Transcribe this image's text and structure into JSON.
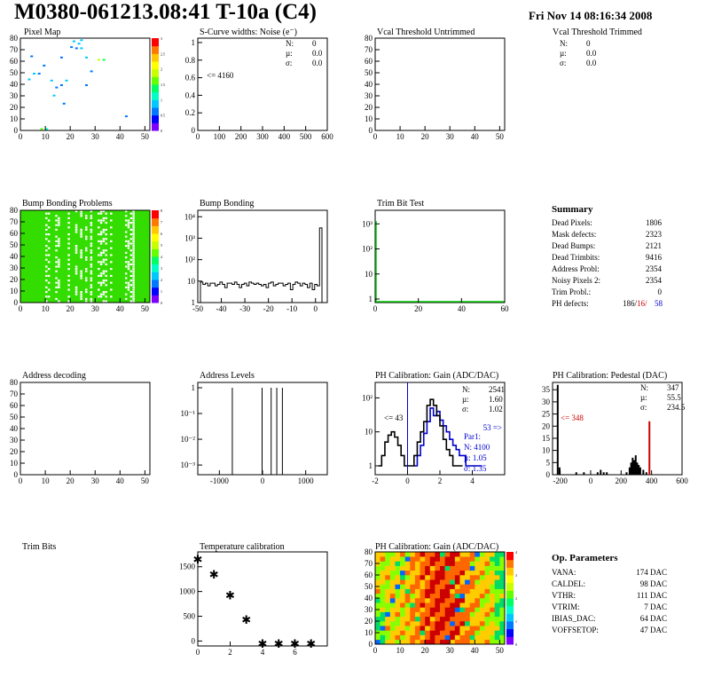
{
  "page": {
    "title": "M0380-061213.08:41 T-10a (C4)",
    "date": "Fri Nov 14 08:16:34 2008"
  },
  "colors": {
    "frame": "#000000",
    "hist_line": "#000000",
    "blue": "#0000cc",
    "red": "#cc0000",
    "green": "#00cc00"
  },
  "palette": [
    "#7d00ff",
    "#0000ff",
    "#0078ff",
    "#00c8ff",
    "#00ffc8",
    "#00ff64",
    "#64ff00",
    "#c8ff00",
    "#ffff00",
    "#ffc800",
    "#ff7800",
    "#ff0000"
  ],
  "summary": {
    "title": "Summary",
    "rows": [
      {
        "label": "Dead Pixels:",
        "value": "1806"
      },
      {
        "label": "Mask defects:",
        "value": "2323"
      },
      {
        "label": "Dead Bumps:",
        "value": "2121"
      },
      {
        "label": "Dead Trimbits:",
        "value": "9416"
      },
      {
        "label": "Address Probl:",
        "value": "2354"
      },
      {
        "label": "Noisy Pixels 2:",
        "value": "2354"
      },
      {
        "label": "Trim Probl.:",
        "value": "0"
      }
    ],
    "ph_label": "PH defects:",
    "ph_v1": "186/",
    "ph_v2": "16/",
    "ph_v3": "58"
  },
  "op_params": {
    "title": "Op. Parameters",
    "rows": [
      {
        "label": "VANA:",
        "value": "174 DAC"
      },
      {
        "label": "CALDEL:",
        "value": "98 DAC"
      },
      {
        "label": "VTHR:",
        "value": "111 DAC"
      },
      {
        "label": "VTRIM:",
        "value": "7 DAC"
      },
      {
        "label": "IBIAS_DAC:",
        "value": "64 DAC"
      },
      {
        "label": "VOFFSETOP:",
        "value": "47 DAC"
      }
    ]
  },
  "chart_data": [
    {
      "id": "pixel_map",
      "type": "heatmap",
      "title": "Pixel Map",
      "xlim": [
        0,
        52
      ],
      "ylim": [
        0,
        80
      ],
      "x_ticks": [
        "0",
        "10",
        "20",
        "30",
        "40",
        "50"
      ],
      "y_ticks": [
        "0",
        "10",
        "20",
        "30",
        "40",
        "50",
        "60",
        "70",
        "80"
      ],
      "z_ticks": [
        "0",
        "0.5",
        "1",
        "1.5",
        "2",
        "2.5",
        "3"
      ],
      "points": [
        [
          4,
          65,
          2
        ],
        [
          9,
          57,
          2
        ],
        [
          12,
          44,
          3
        ],
        [
          18,
          44,
          3
        ],
        [
          21,
          78,
          3
        ],
        [
          22,
          72,
          2
        ],
        [
          23,
          76,
          3
        ],
        [
          24,
          79,
          3
        ],
        [
          26,
          64,
          3
        ],
        [
          31,
          62,
          7
        ],
        [
          14,
          38,
          2
        ],
        [
          16,
          40,
          2
        ],
        [
          20,
          73,
          2
        ],
        [
          42,
          13,
          2
        ],
        [
          8,
          2,
          6
        ],
        [
          10,
          2,
          4
        ],
        [
          5,
          50,
          3
        ],
        [
          7,
          50,
          2
        ],
        [
          13,
          31,
          3
        ],
        [
          17,
          24,
          2
        ],
        [
          28,
          52,
          2
        ],
        [
          26,
          40,
          2
        ],
        [
          24,
          72,
          3
        ],
        [
          3,
          45,
          3
        ],
        [
          16,
          64,
          2
        ],
        [
          33,
          62,
          5
        ]
      ]
    },
    {
      "id": "scurve",
      "type": "bar",
      "title": "S-Curve widths: Noise (e⁻)",
      "xlim": [
        0,
        600
      ],
      "ylim": [
        0,
        1.05
      ],
      "x_ticks": [
        "0",
        "100",
        "200",
        "300",
        "400",
        "500",
        "600"
      ],
      "y_ticks": [
        "0",
        "0.2",
        "0.4",
        "0.6",
        "0.8",
        "1"
      ],
      "stats": {
        "N": "0",
        "mu": "0.0",
        "sigma": "0.0"
      },
      "annotation": "<= 4160"
    },
    {
      "id": "vcal_untrimmed",
      "type": "bar",
      "title": "Vcal Threshold Untrimmed",
      "xlim": [
        0,
        52
      ],
      "ylim": [
        0,
        80
      ],
      "x_ticks": [
        "0",
        "10",
        "20",
        "30",
        "40",
        "50"
      ],
      "y_ticks": [
        "0",
        "10",
        "20",
        "30",
        "40",
        "50",
        "60",
        "70",
        "80"
      ]
    },
    {
      "id": "vcal_trimmed",
      "type": "bar",
      "title": "Vcal Threshold Trimmed",
      "stats": {
        "N": "0",
        "mu": "0.0",
        "sigma": "0.0"
      }
    },
    {
      "id": "bump_map",
      "type": "heatmap",
      "title": "Bump Bonding Problems",
      "xlim": [
        0,
        52
      ],
      "ylim": [
        0,
        80
      ],
      "x_ticks": [
        "0",
        "10",
        "20",
        "30",
        "40",
        "50"
      ],
      "y_ticks": [
        "0",
        "10",
        "20",
        "30",
        "40",
        "50",
        "60",
        "70",
        "80"
      ],
      "z_ticks": [
        "0",
        "1",
        "2",
        "3",
        "4",
        "5",
        "6",
        "7",
        "8"
      ],
      "white_columns": [
        10,
        11,
        14,
        15,
        19,
        20,
        22,
        24,
        26,
        28,
        31,
        32,
        33,
        34,
        36,
        42,
        43,
        44,
        45
      ]
    },
    {
      "id": "bump_bonding",
      "type": "bar",
      "title": "Bump Bonding",
      "xlim": [
        -50,
        5
      ],
      "log_y": true,
      "x_ticks": [
        "-50",
        "-40",
        "-30",
        "-20",
        "-10",
        "0"
      ],
      "y_ticks": [
        "1",
        "10",
        "10²",
        "10³",
        "10⁴"
      ],
      "values": [
        9,
        7,
        8,
        6,
        8,
        8,
        6,
        7,
        9,
        7,
        5,
        8,
        8,
        7,
        9,
        7,
        5,
        7,
        8,
        6,
        9,
        8,
        7,
        8,
        7,
        6,
        7,
        5,
        8,
        9,
        6,
        7,
        8,
        8,
        6,
        7,
        8,
        4,
        7,
        9,
        8,
        6,
        8,
        7,
        5,
        8,
        4,
        7,
        6,
        3000
      ]
    },
    {
      "id": "trim_bit_test",
      "type": "bar",
      "title": "Trim Bit Test",
      "xlim": [
        0,
        60
      ],
      "log_y": true,
      "x_ticks": [
        "0",
        "20",
        "40",
        "60"
      ],
      "y_ticks": [
        "1",
        "10",
        "10²",
        "10³"
      ]
    },
    {
      "id": "address_decoding",
      "type": "heatmap",
      "title": "Address decoding",
      "xlim": [
        0,
        52
      ],
      "ylim": [
        0,
        80
      ],
      "x_ticks": [
        "0",
        "10",
        "20",
        "30",
        "40",
        "50"
      ],
      "y_ticks": [
        "0",
        "10",
        "20",
        "30",
        "40",
        "50",
        "60",
        "70",
        "80"
      ]
    },
    {
      "id": "address_levels",
      "type": "bar",
      "title": "Address Levels",
      "xlim": [
        -1500,
        1500
      ],
      "log_y": true,
      "x_ticks": [
        "-1000",
        "0",
        "1000"
      ],
      "y_ticks": [
        "10⁻³",
        "10⁻²",
        "10⁻¹",
        "1"
      ],
      "spikes": [
        -700,
        -10,
        200,
        330,
        460
      ]
    },
    {
      "id": "ph_gain",
      "type": "line",
      "title": "PH Calibration: Gain (ADC/DAC)",
      "xlim": [
        -2,
        6
      ],
      "log_y": true,
      "x_ticks": [
        "-2",
        "0",
        "2",
        "4"
      ],
      "y_ticks": [
        "1",
        "10",
        "10²"
      ],
      "stats": {
        "N": "2541",
        "mu": "1.60",
        "sigma": "1.02"
      },
      "fit": {
        "label": "Par1:",
        "N": "N: 4100",
        "mu": "µ: 1.05",
        "sigma": "σ: 1.35"
      },
      "left_annot": "<= 43",
      "right_annot": "53 =>",
      "black_x": [
        -1.7,
        -1.5,
        -1.3,
        -1.1,
        -0.9,
        -0.7,
        -0.5,
        -0.3,
        -0.1,
        0.1,
        0.3,
        0.5,
        0.7,
        0.9,
        1.1,
        1.3,
        1.5,
        1.7,
        1.9,
        2.1,
        2.3,
        2.5,
        2.7,
        2.9,
        3.1,
        3.3
      ],
      "black_y": [
        1,
        2,
        5,
        8,
        10,
        7,
        4,
        2,
        1,
        1,
        1,
        2,
        5,
        10,
        20,
        60,
        90,
        60,
        30,
        15,
        6,
        3,
        2,
        1,
        1,
        1
      ],
      "blue_x": [
        0.5,
        0.7,
        0.9,
        1.1,
        1.3,
        1.5,
        1.7,
        1.9,
        2.1,
        2.3,
        2.5,
        2.7,
        2.9,
        3.1,
        3.3,
        3.5,
        3.7,
        3.9,
        4.1,
        4.3,
        4.5
      ],
      "blue_y": [
        1,
        2,
        4,
        9,
        20,
        50,
        30,
        40,
        22,
        15,
        10,
        6,
        4,
        3,
        2,
        2,
        1,
        1,
        1,
        1,
        1
      ]
    },
    {
      "id": "ph_pedestal",
      "type": "bar",
      "title": "PH Calibration: Pedestal (DAC)",
      "xlim": [
        -250,
        600
      ],
      "ylim": [
        0,
        38
      ],
      "x_ticks": [
        "-200",
        "0",
        "200",
        "400",
        "600"
      ],
      "y_ticks": [
        "0",
        "5",
        "10",
        "15",
        "20",
        "25",
        "30",
        "35"
      ],
      "stats": {
        "N": "347",
        "mu": "55.5",
        "sigma": "234.5"
      },
      "annotation": "<= 348",
      "bars": [
        [
          -222,
          37
        ],
        [
          -210,
          3
        ],
        [
          -100,
          1
        ],
        [
          -50,
          1
        ],
        [
          40,
          1
        ],
        [
          60,
          2
        ],
        [
          80,
          1
        ],
        [
          100,
          1
        ],
        [
          230,
          1
        ],
        [
          250,
          3
        ],
        [
          260,
          5
        ],
        [
          270,
          7
        ],
        [
          280,
          6
        ],
        [
          290,
          8
        ],
        [
          300,
          5
        ],
        [
          310,
          4
        ],
        [
          320,
          3
        ],
        [
          340,
          2
        ],
        [
          360,
          1
        ],
        [
          380,
          22
        ]
      ]
    },
    {
      "id": "trim_bits",
      "type": "heatmap",
      "title": "Trim Bits"
    },
    {
      "id": "temperature",
      "type": "scatter",
      "title": "Temperature calibration",
      "xlim": [
        0,
        8
      ],
      "ylim": [
        -100,
        1800
      ],
      "x_ticks": [
        "0",
        "2",
        "4",
        "6"
      ],
      "y_ticks": [
        "0",
        "500",
        "1000",
        "1500"
      ],
      "x": [
        0,
        1,
        2,
        3,
        4,
        5,
        6,
        7
      ],
      "y": [
        1660,
        1350,
        930,
        440,
        -50,
        -50,
        -50,
        -50
      ]
    },
    {
      "id": "ph_gain_map",
      "type": "heatmap",
      "title": "PH Calibration: Gain (ADC/DAC)",
      "xlim": [
        0,
        52
      ],
      "ylim": [
        0,
        80
      ],
      "x_ticks": [
        "0",
        "10",
        "20",
        "30",
        "40",
        "50"
      ],
      "y_ticks": [
        "0",
        "10",
        "20",
        "30",
        "40",
        "50",
        "60",
        "70",
        "80"
      ]
    }
  ]
}
